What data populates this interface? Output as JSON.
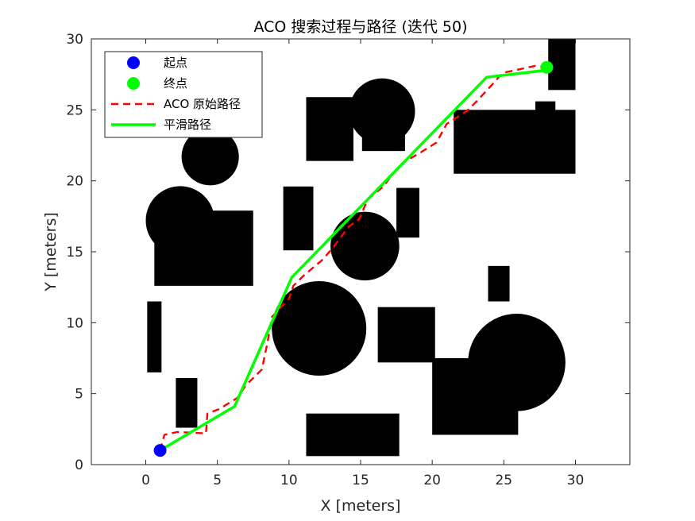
{
  "chart_data": {
    "type": "line",
    "title": "ACO 搜索过程与路径 (迭代 50)",
    "xlabel": "X [meters]",
    "ylabel": "Y [meters]",
    "xlim": [
      -3.8,
      33.8
    ],
    "ylim": [
      0,
      30
    ],
    "xticks": [
      "0",
      "5",
      "10",
      "15",
      "20",
      "25",
      "30"
    ],
    "yticks": [
      "0",
      "5",
      "10",
      "15",
      "20",
      "25",
      "30"
    ],
    "grid": false,
    "legend_position": "top-left",
    "legend": [
      "起点",
      "终点",
      "ACO 原始路径",
      "平滑路径"
    ],
    "series": [
      {
        "name": "起点",
        "type": "point",
        "color": "#0000ff",
        "points": [
          [
            1,
            1
          ]
        ]
      },
      {
        "name": "终点",
        "type": "point",
        "color": "#00ff00",
        "points": [
          [
            28,
            28
          ]
        ]
      },
      {
        "name": "ACO 原始路径",
        "type": "line",
        "style": "dashed",
        "color": "#ff0000",
        "points": [
          [
            1,
            1
          ],
          [
            1.3,
            2.1
          ],
          [
            2.2,
            2.3
          ],
          [
            4.2,
            2.2
          ],
          [
            4.3,
            3.6
          ],
          [
            5.1,
            3.9
          ],
          [
            6.4,
            4.7
          ],
          [
            7.0,
            5.6
          ],
          [
            8.1,
            6.7
          ],
          [
            8.5,
            8.6
          ],
          [
            8.8,
            10.4
          ],
          [
            10.0,
            11.7
          ],
          [
            10.3,
            12.6
          ],
          [
            11.0,
            13.3
          ],
          [
            12.3,
            14.4
          ],
          [
            13.0,
            15.2
          ],
          [
            14.2,
            16.8
          ],
          [
            14.9,
            17.3
          ],
          [
            15.5,
            18.7
          ],
          [
            16.6,
            19.6
          ],
          [
            17.1,
            20.3
          ],
          [
            18.0,
            21.3
          ],
          [
            19.2,
            22.0
          ],
          [
            20.3,
            22.7
          ],
          [
            21.0,
            24.0
          ],
          [
            22.4,
            24.9
          ],
          [
            23.1,
            25.6
          ],
          [
            24.2,
            26.8
          ],
          [
            24.9,
            27.6
          ],
          [
            27.2,
            28.1
          ],
          [
            28,
            28
          ]
        ]
      },
      {
        "name": "平滑路径",
        "type": "line",
        "style": "solid",
        "color": "#00ff00",
        "points": [
          [
            1,
            1
          ],
          [
            6.2,
            4.1
          ],
          [
            10.2,
            13.2
          ],
          [
            23.8,
            27.3
          ],
          [
            28,
            27.8
          ]
        ]
      }
    ],
    "obstacles": [
      {
        "shape": "circle",
        "cx": 4.5,
        "cy": 21.7,
        "r": 2.0
      },
      {
        "shape": "circle",
        "cx": 12.1,
        "cy": 9.6,
        "r": 3.3
      },
      {
        "shape": "circle",
        "cx": 15.3,
        "cy": 15.4,
        "r": 2.4
      },
      {
        "shape": "circle",
        "cx": 16.5,
        "cy": 24.9,
        "r": 2.3
      },
      {
        "shape": "circle",
        "cx": 2.4,
        "cy": 17.2,
        "r": 2.4
      },
      {
        "shape": "circle",
        "cx": 25.9,
        "cy": 7.2,
        "r": 3.4
      },
      {
        "shape": "rect",
        "x0": 0.6,
        "y0": 12.6,
        "x1": 7.5,
        "y1": 17.9
      },
      {
        "shape": "rect",
        "x0": 0.1,
        "y0": 6.5,
        "x1": 1.1,
        "y1": 11.5
      },
      {
        "shape": "rect",
        "x0": 2.1,
        "y0": 2.6,
        "x1": 3.6,
        "y1": 6.1
      },
      {
        "shape": "rect",
        "x0": 9.6,
        "y0": 15.1,
        "x1": 11.7,
        "y1": 19.6
      },
      {
        "shape": "rect",
        "x0": 11.2,
        "y0": 0.6,
        "x1": 17.7,
        "y1": 3.6
      },
      {
        "shape": "rect",
        "x0": 11.2,
        "y0": 21.4,
        "x1": 14.5,
        "y1": 25.9
      },
      {
        "shape": "rect",
        "x0": 15.1,
        "y0": 22.1,
        "x1": 18.1,
        "y1": 26.0
      },
      {
        "shape": "rect",
        "x0": 17.5,
        "y0": 16.0,
        "x1": 19.1,
        "y1": 19.5
      },
      {
        "shape": "rect",
        "x0": 16.2,
        "y0": 7.2,
        "x1": 20.2,
        "y1": 11.1
      },
      {
        "shape": "rect",
        "x0": 20.0,
        "y0": 2.1,
        "x1": 26.0,
        "y1": 7.5
      },
      {
        "shape": "rect",
        "x0": 21.5,
        "y0": 20.5,
        "x1": 30.0,
        "y1": 25.0
      },
      {
        "shape": "rect",
        "x0": 28.1,
        "y0": 26.4,
        "x1": 30.0,
        "y1": 30.0
      },
      {
        "shape": "rect",
        "x0": 27.2,
        "y0": 23.1,
        "x1": 28.6,
        "y1": 25.6
      },
      {
        "shape": "rect",
        "x0": 23.9,
        "y0": 11.5,
        "x1": 25.4,
        "y1": 14.0
      }
    ],
    "colors": {
      "background": "#ffffff",
      "obstacle": "#000000",
      "axis": "#262626"
    }
  }
}
